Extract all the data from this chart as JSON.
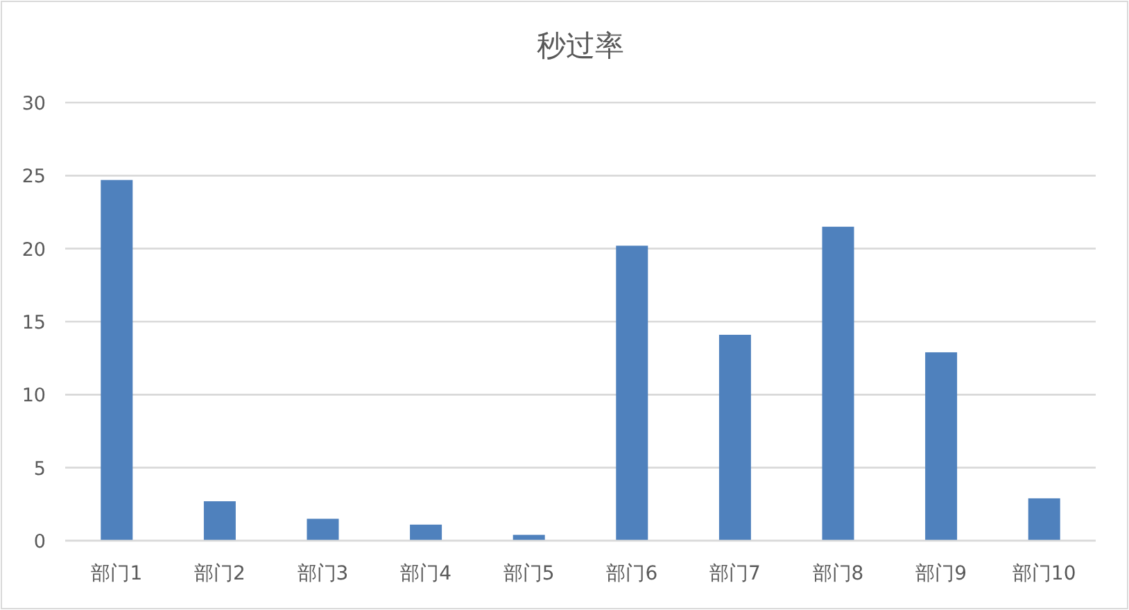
{
  "chart_data": {
    "type": "bar",
    "title": "秒过率",
    "categories": [
      "部门1",
      "部门2",
      "部门3",
      "部门4",
      "部门5",
      "部门6",
      "部门7",
      "部门8",
      "部门9",
      "部门10"
    ],
    "values": [
      24.7,
      2.7,
      1.5,
      1.1,
      0.4,
      20.2,
      14.1,
      21.5,
      12.9,
      2.9
    ],
    "color": "#4f81bd",
    "ylim": [
      0,
      30
    ],
    "yticks": [
      0,
      5,
      10,
      15,
      20,
      25,
      30
    ],
    "grid": "y",
    "legend": false
  }
}
